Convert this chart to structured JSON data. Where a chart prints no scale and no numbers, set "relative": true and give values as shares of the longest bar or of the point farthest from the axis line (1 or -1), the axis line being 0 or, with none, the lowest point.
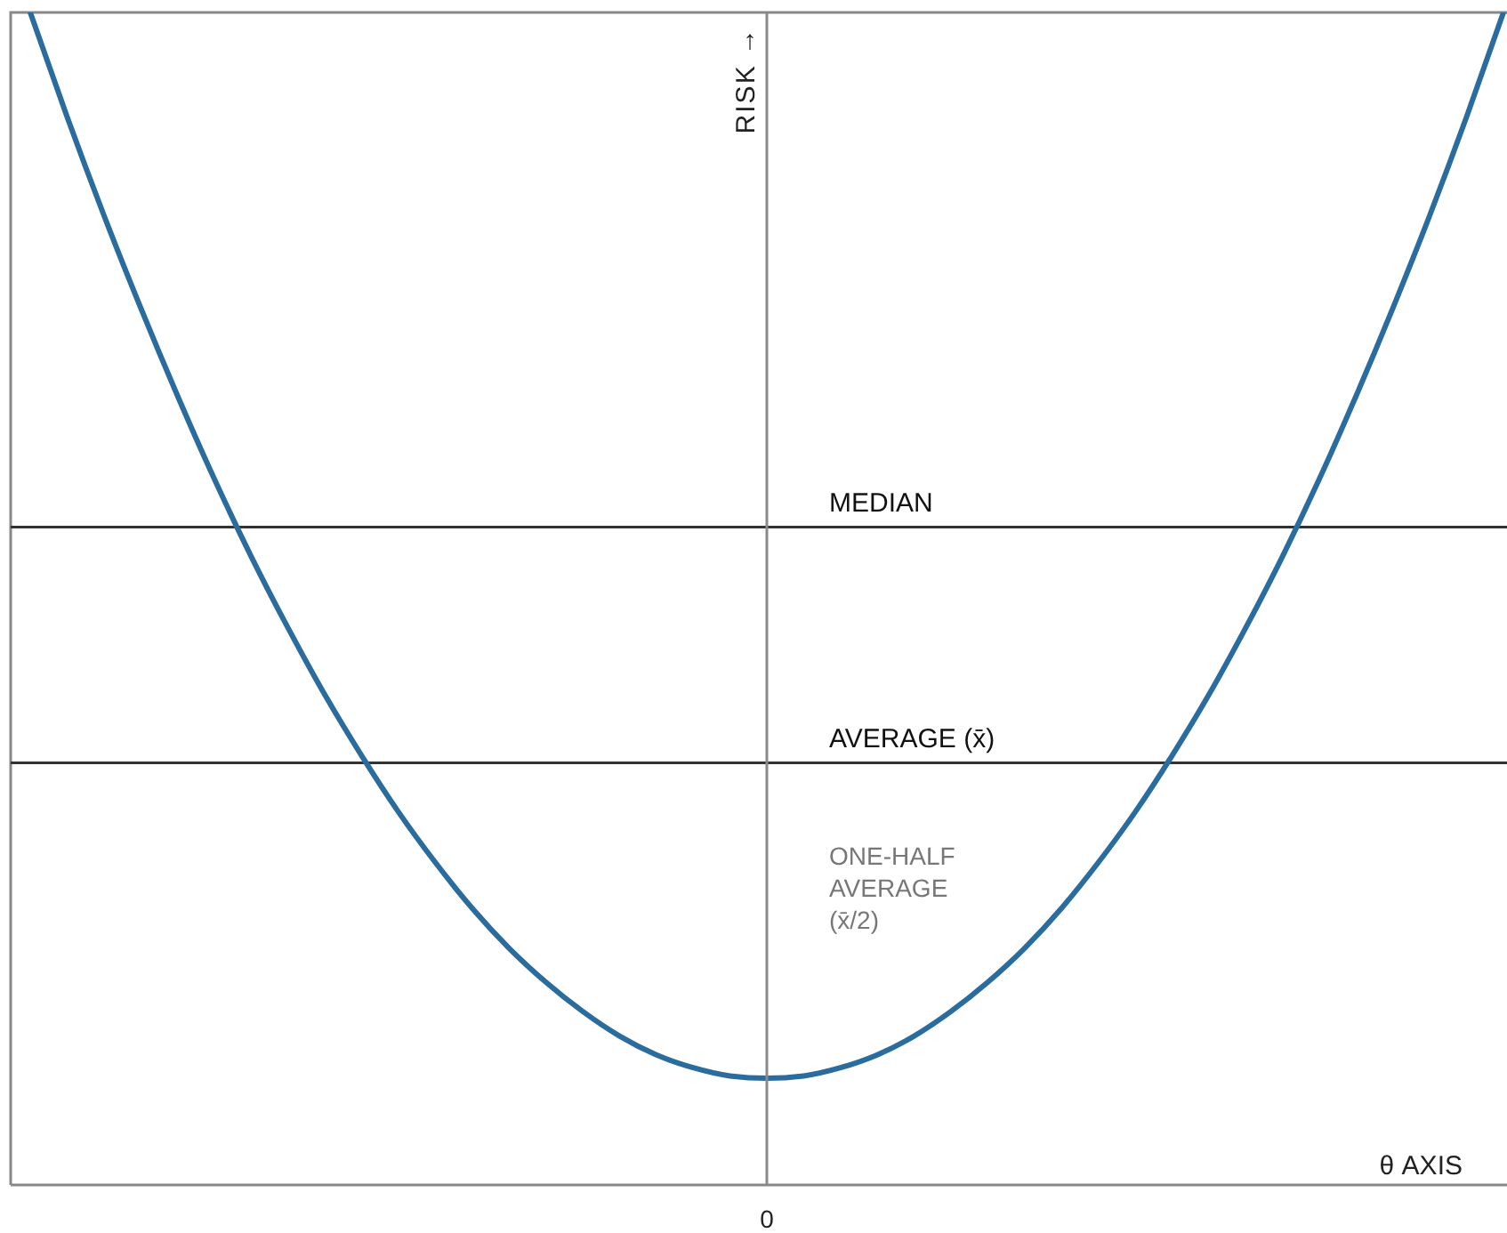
{
  "chart_data": {
    "type": "line",
    "relative": true,
    "xlabel": "θ AXIS",
    "ylabel": "RISK →",
    "categories": [
      null,
      null,
      null,
      null,
      null,
      null,
      null,
      null,
      null,
      null,
      null,
      null,
      null,
      null,
      null,
      null,
      null,
      null,
      null,
      null,
      null,
      null,
      null,
      null,
      null,
      null,
      null,
      null,
      null,
      null,
      null,
      null,
      null,
      null,
      null,
      null,
      null,
      null,
      null,
      null,
      null
    ],
    "series": [
      {
        "color": "#2b6c9e",
        "values": [
          1.0,
          0.911,
          0.827,
          0.748,
          0.673,
          0.602,
          0.536,
          0.475,
          0.418,
          0.366,
          0.318,
          0.275,
          0.236,
          0.202,
          0.173,
          0.148,
          0.127,
          0.111,
          0.1,
          0.093,
          0.091,
          0.093,
          0.1,
          0.111,
          0.127,
          0.148,
          0.173,
          0.202,
          0.236,
          0.275,
          0.318,
          0.366,
          0.418,
          0.475,
          0.536,
          0.602,
          0.673,
          0.748,
          0.827,
          0.911,
          1.0
        ]
      }
    ],
    "ref_lines": [
      {
        "axis": "y",
        "value": 0.561,
        "label": "MEDIAN",
        "color": "#333333"
      },
      {
        "axis": "y",
        "value": 0.36,
        "label": "AVERAGE (x̄)",
        "color": "#333333"
      }
    ],
    "annotations": [
      "ONE-HALF AVERAGE (x̄/2)",
      "0"
    ],
    "marker": "none"
  }
}
